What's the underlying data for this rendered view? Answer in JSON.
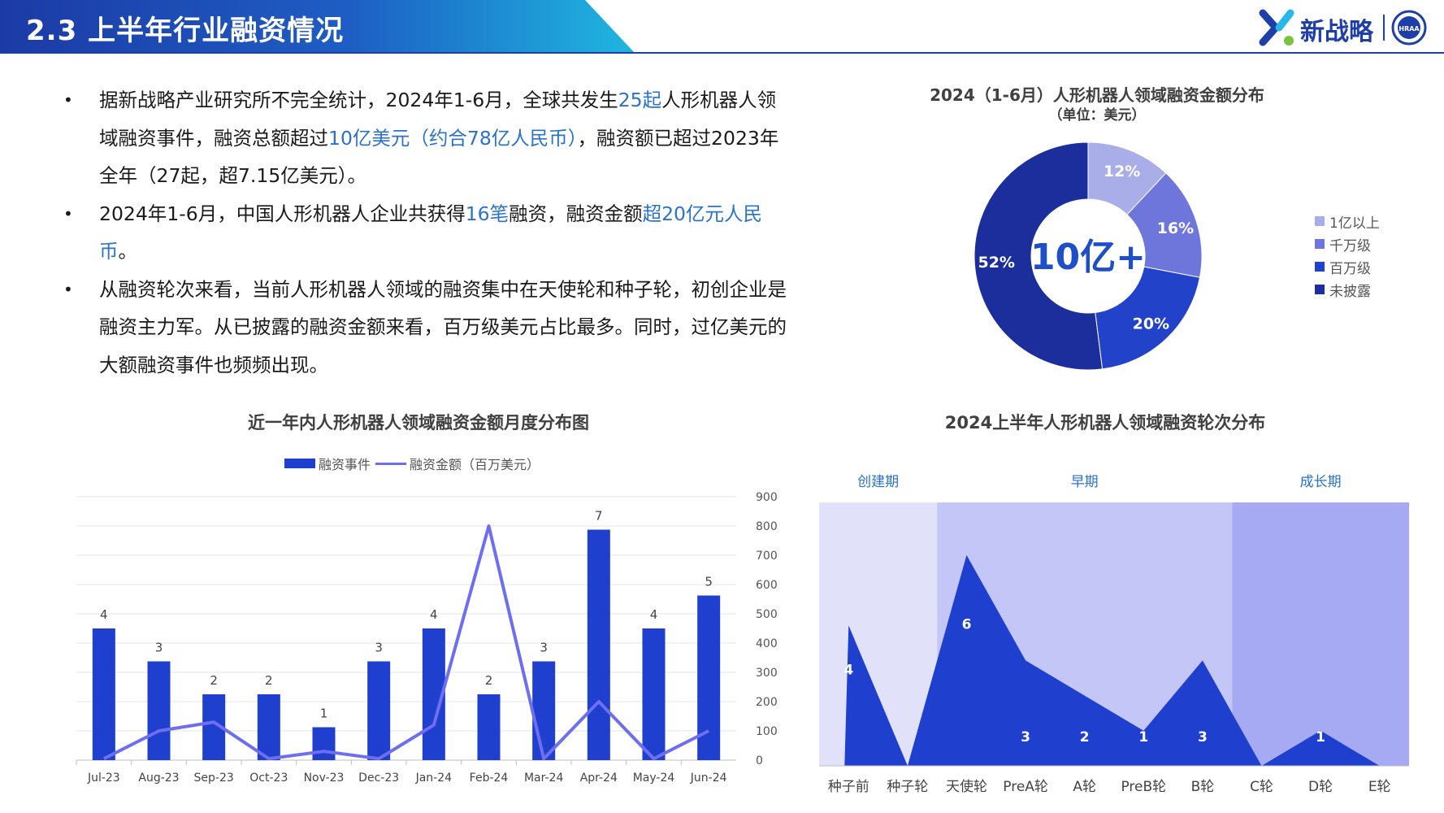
{
  "header": {
    "title": "2.3 上半年行业融资情况",
    "logo_text": "新战略",
    "badge_text": "HRAA"
  },
  "colors": {
    "header_blue": "#1f3fa8",
    "accent_blue": "#2a73c9",
    "bar_blue": "#1f3fcf",
    "line_purple": "#6e6ef0"
  },
  "bullets": [
    {
      "parts": [
        {
          "text": "据新战略产业研究所不完全统计，2024年1-6月，全球共发生",
          "hl": false
        },
        {
          "text": "25起",
          "hl": true
        },
        {
          "text": "人形机器人领域融资事件，融资总额超过",
          "hl": false
        },
        {
          "text": "10亿美元（约合78亿人民币）",
          "hl": true
        },
        {
          "text": "，融资额已超过2023年全年（27起，超7.15亿美元）。",
          "hl": false
        }
      ]
    },
    {
      "parts": [
        {
          "text": "2024年1-6月，中国人形机器人企业共获得",
          "hl": false
        },
        {
          "text": "16笔",
          "hl": true
        },
        {
          "text": "融资，融资金额",
          "hl": false
        },
        {
          "text": "超20亿元人民币",
          "hl": true
        },
        {
          "text": "。",
          "hl": false
        }
      ]
    },
    {
      "parts": [
        {
          "text": "从融资轮次来看，当前人形机器人领域的融资集中在天使轮和种子轮，初创企业是融资主力军。从已披露的融资金额来看，百万级美元占比最多。同时，过亿美元的大额融资事件也频频出现。",
          "hl": false
        }
      ]
    }
  ],
  "chart_data": [
    {
      "type": "pie",
      "title": "2024（1-6月）人形机器人领域融资金额分布",
      "subtitle": "（单位：美元）",
      "center_label": "10亿+",
      "labels": [
        "1亿以上",
        "千万级",
        "百万级",
        "未披露"
      ],
      "values": [
        12,
        16,
        20,
        52
      ],
      "value_labels": [
        "12%",
        "16%",
        "20%",
        "52%"
      ],
      "colors": [
        "#a9aee8",
        "#6f76db",
        "#2142c9",
        "#1b2e9c"
      ],
      "legend": "right"
    },
    {
      "type": "bar",
      "title": "近一年内人形机器人领域融资金额月度分布图",
      "categories": [
        "Jul-23",
        "Aug-23",
        "Sep-23",
        "Oct-23",
        "Nov-23",
        "Dec-23",
        "Jan-24",
        "Feb-24",
        "Mar-24",
        "Apr-24",
        "May-24",
        "Jun-24"
      ],
      "series": [
        {
          "name": "融资事件",
          "type": "bar",
          "axis": "left",
          "values": [
            4,
            3,
            2,
            2,
            1,
            3,
            4,
            2,
            3,
            7,
            4,
            5
          ]
        },
        {
          "name": "融资金额（百万美元）",
          "type": "line",
          "axis": "right",
          "values": [
            5,
            100,
            130,
            5,
            30,
            5,
            120,
            800,
            5,
            200,
            5,
            100
          ]
        }
      ],
      "ylim_left": [
        0,
        8
      ],
      "ylim_right": [
        0,
        900
      ],
      "right_ticks": [
        "0",
        "100",
        "200",
        "300",
        "400",
        "500",
        "600",
        "700",
        "800",
        "900"
      ],
      "legend": "top"
    },
    {
      "type": "area",
      "title": "2024上半年人形机器人领域融资轮次分布",
      "categories": [
        "种子前",
        "种子轮",
        "天使轮",
        "PreA轮",
        "A轮",
        "PreB轮",
        "B轮",
        "C轮",
        "D轮",
        "E轮"
      ],
      "values": [
        4,
        0,
        6,
        3,
        2,
        1,
        3,
        0,
        1,
        0
      ],
      "value_labels": [
        "4",
        "",
        "6",
        "3",
        "2",
        "1",
        "3",
        "",
        "1",
        ""
      ],
      "phases": [
        {
          "label": "创建期",
          "from": 0,
          "to": 1,
          "color": "#e1e2f9"
        },
        {
          "label": "早期",
          "from": 2,
          "to": 6,
          "color": "#c3c6f6"
        },
        {
          "label": "成长期",
          "from": 7,
          "to": 9,
          "color": "#a5aaf2"
        }
      ],
      "ylim": [
        0,
        7.5
      ]
    }
  ]
}
